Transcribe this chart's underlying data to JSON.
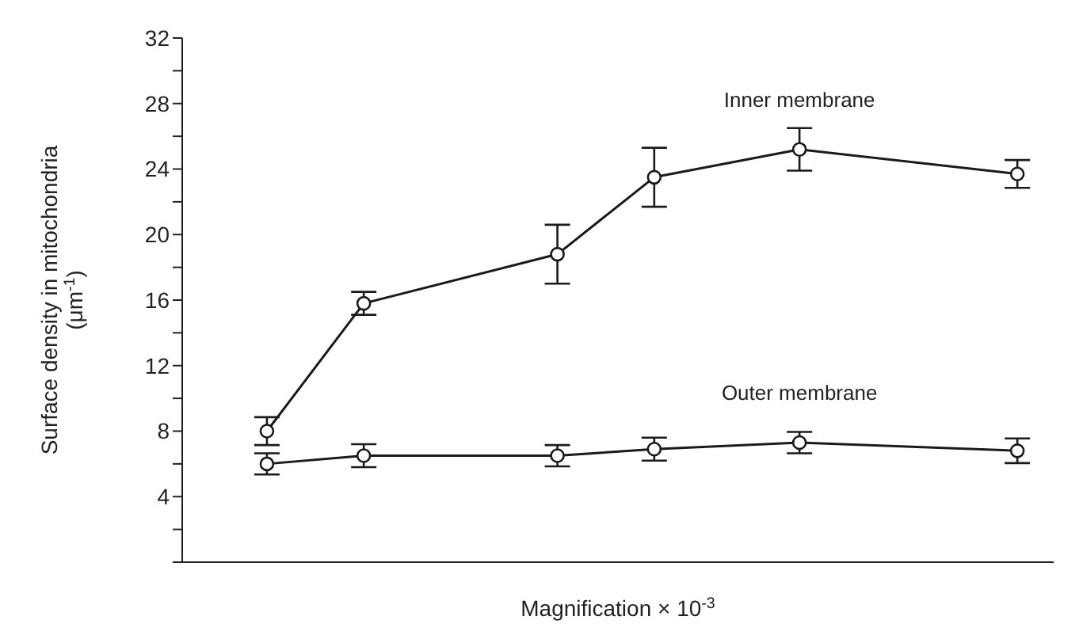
{
  "chart_data": {
    "type": "line",
    "xlabel": "Magnification × 10$^{-3}$",
    "ylabel": "Surface density in mitochondria\n(μm$^{-1}$)",
    "categories": [
      null,
      null,
      null,
      null,
      null,
      null,
      null,
      null,
      null,
      null,
      null,
      null,
      null,
      null,
      null,
      null,
      null,
      null,
      null,
      null,
      null,
      null,
      null,
      null,
      null,
      null,
      null,
      null,
      null,
      null,
      null,
      null,
      null,
      null,
      null,
      null
    ],
    "ylim": [
      0,
      32
    ],
    "yticks": [
      {
        "value": 0,
        "label": null
      },
      {
        "value": 2,
        "label": null
      },
      4,
      {
        "value": 6,
        "label": null
      },
      8,
      {
        "value": 10,
        "label": null
      },
      12,
      {
        "value": 14,
        "label": null
      },
      16,
      {
        "value": 18,
        "label": null
      },
      20,
      {
        "value": 22,
        "label": null
      },
      24,
      {
        "value": 26,
        "label": null
      },
      28,
      {
        "value": 30,
        "label": null
      },
      32
    ],
    "series": [
      {
        "name": "Inner membrane",
        "color": "#1a1a1a",
        "values": [
          null,
          null,
          null,
          8.0,
          null,
          null,
          null,
          15.8,
          null,
          null,
          null,
          null,
          null,
          null,
          null,
          18.8,
          null,
          null,
          null,
          23.5,
          null,
          null,
          null,
          null,
          null,
          25.2,
          null,
          null,
          null,
          null,
          null,
          null,
          null,
          null,
          23.7,
          null
        ],
        "errors": [
          null,
          null,
          null,
          0.85,
          null,
          null,
          null,
          0.7,
          null,
          null,
          null,
          null,
          null,
          null,
          null,
          1.8,
          null,
          null,
          null,
          1.8,
          null,
          null,
          null,
          null,
          null,
          1.3,
          null,
          null,
          null,
          null,
          null,
          null,
          null,
          null,
          0.85,
          null
        ]
      },
      {
        "name": "Outer membrane",
        "color": "#1a1a1a",
        "values": [
          null,
          null,
          null,
          6.0,
          null,
          null,
          null,
          6.5,
          null,
          null,
          null,
          null,
          null,
          null,
          null,
          6.5,
          null,
          null,
          null,
          6.9,
          null,
          null,
          null,
          null,
          null,
          7.3,
          null,
          null,
          null,
          null,
          null,
          null,
          null,
          null,
          6.8,
          null
        ],
        "errors": [
          null,
          null,
          null,
          0.65,
          null,
          null,
          null,
          0.7,
          null,
          null,
          null,
          null,
          null,
          null,
          null,
          0.65,
          null,
          null,
          null,
          0.7,
          null,
          null,
          null,
          null,
          null,
          0.65,
          null,
          null,
          null,
          null,
          null,
          null,
          null,
          null,
          0.75,
          null
        ]
      }
    ],
    "marker": "circle",
    "line_style": "solid",
    "tick_labels": "y"
  }
}
